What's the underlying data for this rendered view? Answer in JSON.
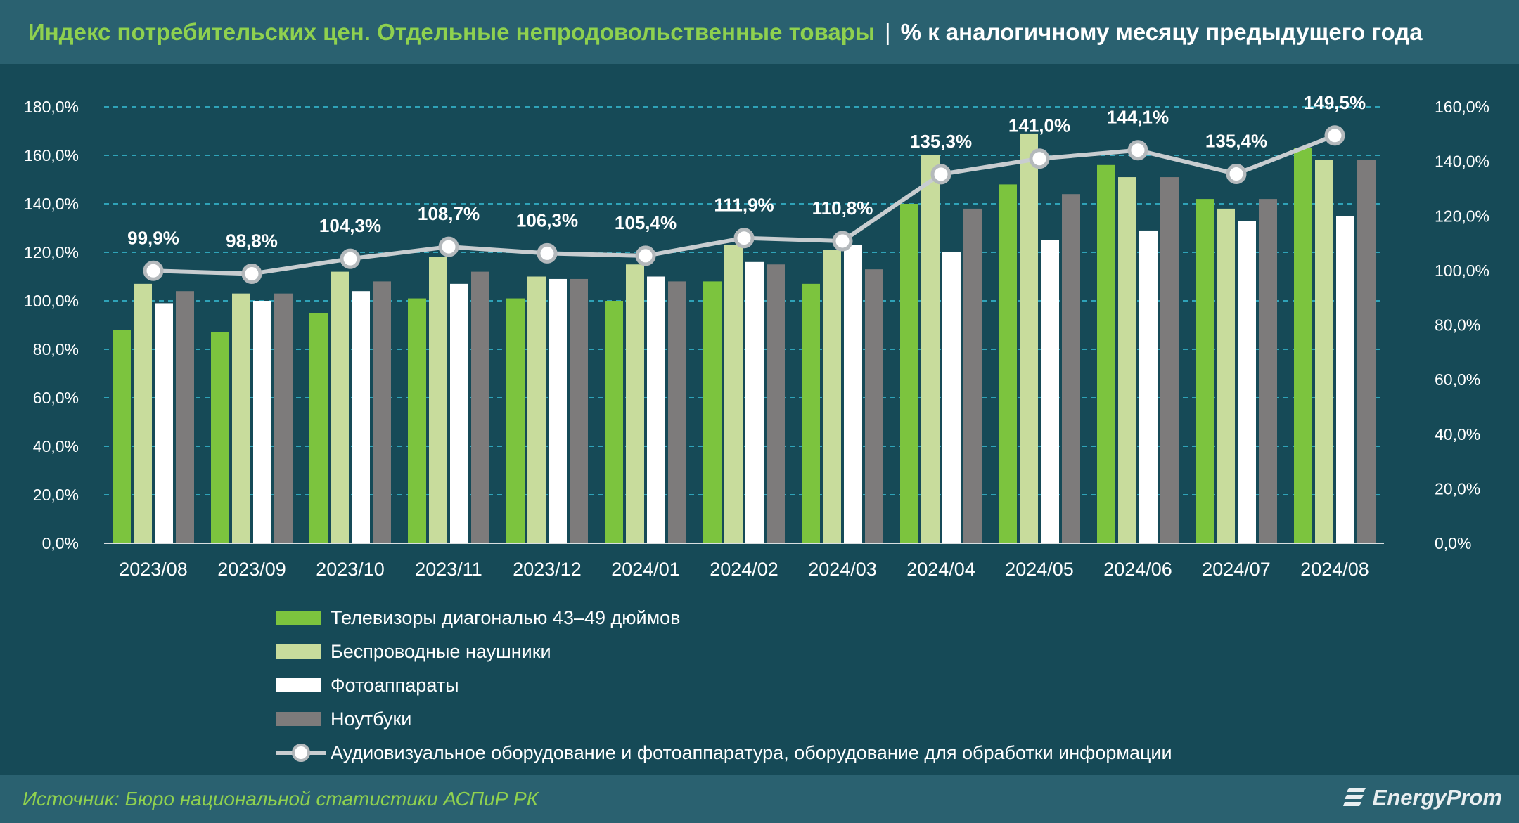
{
  "header": {
    "title": "Индекс потребительских цен. Отдельные непродовольственные товары",
    "separator": "|",
    "subtitle": "% к аналогичному месяцу предыдущего года"
  },
  "footer": {
    "source": "Источник: Бюро национальной статистики АСПиР РК",
    "brand": "EnergyProm"
  },
  "colors": {
    "background": "#164a57",
    "header": "#2a6170",
    "accent_green": "#8fd14f",
    "tv": "#7cc43e",
    "headphones": "#c8dc9c",
    "cameras": "#ffffff",
    "laptops": "#7d7b7b",
    "line": "#c8cdd0",
    "grid": "#2fa3b8"
  },
  "chart_data": {
    "type": "bar",
    "categories": [
      "2023/08",
      "2023/09",
      "2023/10",
      "2023/11",
      "2023/12",
      "2024/01",
      "2024/02",
      "2024/03",
      "2024/04",
      "2024/05",
      "2024/06",
      "2024/07",
      "2024/08"
    ],
    "series": [
      {
        "name": "Телевизоры диагональю 43–49 дюймов",
        "axis": "left",
        "color": "#7cc43e",
        "values": [
          88,
          87,
          95,
          101,
          101,
          100,
          108,
          107,
          140,
          148,
          156,
          142,
          163
        ]
      },
      {
        "name": "Беспроводные наушники",
        "axis": "left",
        "color": "#c8dc9c",
        "values": [
          107,
          103,
          112,
          118,
          110,
          115,
          123,
          121,
          160,
          169,
          151,
          138,
          158
        ]
      },
      {
        "name": "Фотоаппараты",
        "axis": "left",
        "color": "#ffffff",
        "values": [
          99,
          100,
          104,
          107,
          109,
          110,
          116,
          123,
          120,
          125,
          129,
          133,
          135
        ]
      },
      {
        "name": "Ноутбуки",
        "axis": "left",
        "color": "#7d7b7b",
        "values": [
          104,
          103,
          108,
          112,
          109,
          108,
          115,
          113,
          138,
          144,
          151,
          142,
          158
        ]
      },
      {
        "name": "Аудиовизуальное оборудование и фотоаппаратура, оборудование для обработки информации",
        "axis": "right",
        "type": "line",
        "color": "#c8cdd0",
        "values": [
          99.9,
          98.8,
          104.3,
          108.7,
          106.3,
          105.4,
          111.9,
          110.8,
          135.3,
          141.0,
          144.1,
          135.4,
          149.5
        ],
        "labels": [
          "99,9%",
          "98,8%",
          "104,3%",
          "108,7%",
          "106,3%",
          "105,4%",
          "111,9%",
          "110,8%",
          "135,3%",
          "141,0%",
          "144,1%",
          "135,4%",
          "149,5%"
        ]
      }
    ],
    "y_left": {
      "lim": [
        0,
        180
      ],
      "ticks": [
        "0,0%",
        "20,0%",
        "40,0%",
        "60,0%",
        "80,0%",
        "100,0%",
        "120,0%",
        "140,0%",
        "160,0%",
        "180,0%"
      ]
    },
    "y_right": {
      "lim": [
        0,
        160
      ],
      "ticks": [
        "0,0%",
        "20,0%",
        "40,0%",
        "60,0%",
        "80,0%",
        "100,0%",
        "120,0%",
        "140,0%",
        "160,0%"
      ]
    },
    "grid": true,
    "legend_placement": "bottom"
  }
}
